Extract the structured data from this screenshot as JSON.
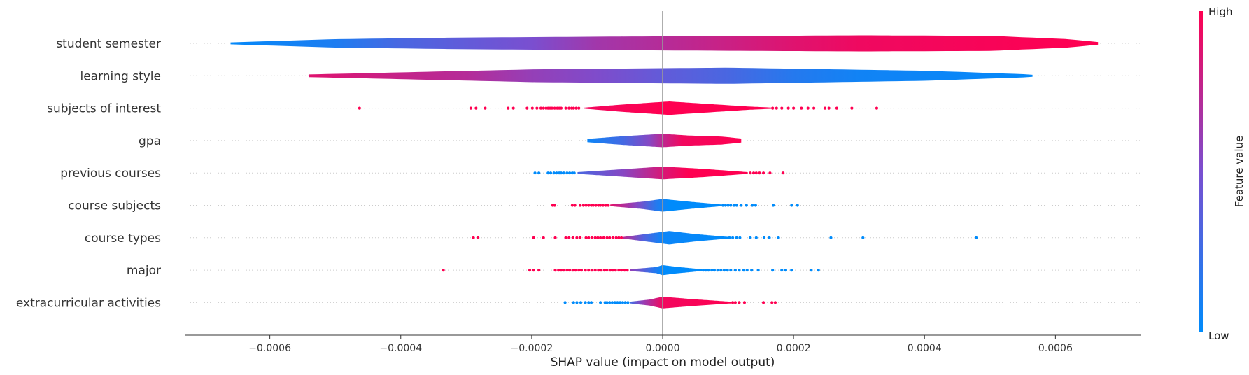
{
  "chart_data": {
    "type": "violin",
    "title": "",
    "xlabel": "SHAP value (impact on model output)",
    "xlim": [
      -0.00073,
      0.00073
    ],
    "xticks": [
      -0.0006,
      -0.0004,
      -0.0002,
      0.0,
      0.0002,
      0.0004,
      0.0006
    ],
    "xtick_labels": [
      "−0.0006",
      "−0.0004",
      "−0.0002",
      "0.0000",
      "0.0002",
      "0.0004",
      "0.0006"
    ],
    "grid": false,
    "colorbar": {
      "label": "Feature value",
      "high_label": "High",
      "low_label": "Low",
      "low_color": "#008bfb",
      "high_color": "#ff0051"
    },
    "features": [
      {
        "name": "student semester",
        "min": -0.00066,
        "max": 0.000665,
        "width_profile": [
          [
            -0.00066,
            0.06
          ],
          [
            -0.0005,
            0.25
          ],
          [
            -0.0003,
            0.35
          ],
          [
            -0.0001,
            0.4
          ],
          [
            0.0001,
            0.44
          ],
          [
            0.0003,
            0.48
          ],
          [
            0.0005,
            0.45
          ],
          [
            0.00062,
            0.25
          ],
          [
            0.000665,
            0.08
          ]
        ],
        "color_profile": [
          [
            -0.00066,
            0.02
          ],
          [
            -0.0005,
            0.12
          ],
          [
            -0.0004,
            0.3
          ],
          [
            -0.0003,
            0.4
          ],
          [
            -0.0002,
            0.5
          ],
          [
            -0.0001,
            0.65
          ],
          [
            0.0,
            0.72
          ],
          [
            0.0001,
            0.8
          ],
          [
            0.0002,
            0.88
          ],
          [
            0.0003,
            0.94
          ],
          [
            0.000665,
            1.0
          ]
        ],
        "outliers": []
      },
      {
        "name": "learning style",
        "min": -0.00054,
        "max": 0.000565,
        "width_profile": [
          [
            -0.00054,
            0.08
          ],
          [
            -0.0004,
            0.2
          ],
          [
            -0.0002,
            0.38
          ],
          [
            0.0,
            0.45
          ],
          [
            0.0001,
            0.48
          ],
          [
            0.0002,
            0.42
          ],
          [
            0.0004,
            0.3
          ],
          [
            0.00055,
            0.1
          ],
          [
            0.000565,
            0.06
          ]
        ],
        "color_profile": [
          [
            -0.00054,
            0.88
          ],
          [
            -0.0004,
            0.78
          ],
          [
            -0.0003,
            0.72
          ],
          [
            -0.0002,
            0.6
          ],
          [
            -0.0001,
            0.52
          ],
          [
            0.0,
            0.4
          ],
          [
            0.0001,
            0.3
          ],
          [
            0.0002,
            0.15
          ],
          [
            0.0003,
            0.07
          ],
          [
            0.000565,
            0.02
          ]
        ],
        "outliers": []
      },
      {
        "name": "subjects of interest",
        "min": -0.00012,
        "max": 0.00017,
        "width_profile": [
          [
            -0.00012,
            0.03
          ],
          [
            -6e-05,
            0.22
          ],
          [
            1e-05,
            0.4
          ],
          [
            7e-05,
            0.25
          ],
          [
            0.00013,
            0.1
          ],
          [
            0.00017,
            0.03
          ]
        ],
        "color_profile": [
          [
            -0.00012,
            0.95
          ],
          [
            0.0,
            1.0
          ],
          [
            0.00017,
            1.0
          ]
        ],
        "outliers_low": [
          -0.000463,
          -0.000293,
          -0.000285,
          -0.000271,
          -0.000236,
          -0.000228,
          -0.000207,
          -0.000199,
          -0.000192,
          -0.000186,
          -0.000182,
          -0.000178,
          -0.000175,
          -0.000172,
          -0.000169,
          -0.000165,
          -0.000161,
          -0.000158,
          -0.000155,
          -0.000148,
          -0.000143,
          -0.000139,
          -0.000136,
          -0.000132,
          -0.000128
        ],
        "outliers_high": [
          0.000168,
          0.000174,
          0.000182,
          0.000192,
          0.0002,
          0.000212,
          0.000222,
          0.000231,
          0.000248,
          0.000254,
          0.000266,
          0.000289,
          0.000327
        ]
      },
      {
        "name": "gpa",
        "min": -0.000115,
        "max": 0.00012,
        "width_profile": [
          [
            -0.000115,
            0.1
          ],
          [
            -6e-05,
            0.26
          ],
          [
            0.0,
            0.4
          ],
          [
            4e-05,
            0.3
          ],
          [
            9e-05,
            0.24
          ],
          [
            0.00012,
            0.12
          ]
        ],
        "color_profile": [
          [
            -0.000115,
            0.05
          ],
          [
            -6e-05,
            0.28
          ],
          [
            -2e-05,
            0.55
          ],
          [
            0.0,
            0.75
          ],
          [
            3e-05,
            0.95
          ],
          [
            0.00012,
            1.0
          ]
        ],
        "outliers": []
      },
      {
        "name": "previous courses",
        "min": -0.00013,
        "max": 0.00013,
        "width_profile": [
          [
            -0.00013,
            0.05
          ],
          [
            -7e-05,
            0.2
          ],
          [
            0.0,
            0.38
          ],
          [
            6e-05,
            0.25
          ],
          [
            0.00013,
            0.05
          ]
        ],
        "color_profile": [
          [
            -0.00013,
            0.3
          ],
          [
            -6e-05,
            0.55
          ],
          [
            0.0,
            0.85
          ],
          [
            4e-05,
            1.0
          ],
          [
            0.00013,
            1.0
          ]
        ],
        "outliers_low": [
          -0.000195,
          -0.000189,
          -0.000175,
          -0.000171,
          -0.000166,
          -0.000162,
          -0.000158,
          -0.000155,
          -0.000151,
          -0.000146,
          -0.000142,
          -0.000138,
          -0.000135
        ],
        "outliers_high": [
          0.000134,
          0.000139,
          0.000143,
          0.000148,
          0.000154,
          0.000164,
          0.000184
        ]
      },
      {
        "name": "course subjects",
        "min": -8e-05,
        "max": 9e-05,
        "width_profile": [
          [
            -8e-05,
            0.05
          ],
          [
            -3e-05,
            0.22
          ],
          [
            0.0,
            0.38
          ],
          [
            4e-05,
            0.22
          ],
          [
            9e-05,
            0.05
          ]
        ],
        "color_profile": [
          [
            -8e-05,
            0.9
          ],
          [
            -4e-05,
            0.55
          ],
          [
            -1e-05,
            0.15
          ],
          [
            1e-05,
            0.0
          ],
          [
            9e-05,
            0.0
          ]
        ],
        "outliers_low": [
          -0.000168,
          -0.000165,
          -0.000138,
          -0.000134,
          -0.000126,
          -0.000121,
          -0.000117,
          -0.000113,
          -0.000109,
          -0.000106,
          -0.000102,
          -9.8e-05,
          -9.5e-05,
          -9.1e-05,
          -8.7e-05,
          -8.3e-05
        ],
        "outliers_high": [
          9.2e-05,
          9.6e-05,
          0.0001,
          0.000104,
          0.000109,
          0.000113,
          0.00012,
          0.000128,
          0.000137,
          0.000142,
          0.000169,
          0.000197,
          0.000206
        ]
      },
      {
        "name": "course types",
        "min": -6e-05,
        "max": 0.0001,
        "width_profile": [
          [
            -6e-05,
            0.05
          ],
          [
            -2e-05,
            0.25
          ],
          [
            1e-05,
            0.4
          ],
          [
            5e-05,
            0.22
          ],
          [
            0.0001,
            0.05
          ]
        ],
        "color_profile": [
          [
            -6e-05,
            0.75
          ],
          [
            -3e-05,
            0.35
          ],
          [
            0.0,
            0.05
          ],
          [
            0.0001,
            0.0
          ]
        ],
        "outliers_low": [
          -0.000289,
          -0.000282,
          -0.000197,
          -0.000182,
          -0.000164,
          -0.000148,
          -0.000143,
          -0.000137,
          -0.000131,
          -0.000126,
          -0.000117,
          -0.000113,
          -0.000108,
          -0.000103,
          -9.9e-05,
          -9.5e-05,
          -9e-05,
          -8.5e-05,
          -8.1e-05,
          -7.6e-05,
          -7.1e-05,
          -6.7e-05,
          -6.3e-05
        ],
        "outliers_high": [
          0.000102,
          0.000107,
          0.000113,
          0.000118,
          0.000134,
          0.000143,
          0.000155,
          0.000163,
          0.000177,
          0.000257,
          0.000306,
          0.000479
        ]
      },
      {
        "name": "major",
        "min": -5e-05,
        "max": 6e-05,
        "width_profile": [
          [
            -5e-05,
            0.05
          ],
          [
            -1e-05,
            0.18
          ],
          [
            0.0,
            0.3
          ],
          [
            2e-05,
            0.2
          ],
          [
            6e-05,
            0.05
          ]
        ],
        "color_profile": [
          [
            -5e-05,
            0.6
          ],
          [
            -2e-05,
            0.25
          ],
          [
            0.0,
            0.0
          ],
          [
            6e-05,
            0.0
          ]
        ],
        "outliers_low": [
          -0.000335,
          -0.000203,
          -0.000197,
          -0.000189,
          -0.000164,
          -0.000159,
          -0.000155,
          -0.000151,
          -0.000146,
          -0.000142,
          -0.000137,
          -0.000133,
          -0.000128,
          -0.000124,
          -0.000118,
          -0.000113,
          -0.000108,
          -0.000103,
          -9.8e-05,
          -9.4e-05,
          -8.9e-05,
          -8.5e-05,
          -8e-05,
          -7.6e-05,
          -7.2e-05,
          -6.7e-05,
          -6.3e-05,
          -5.8e-05,
          -5.4e-05
        ],
        "outliers_high": [
          6.2e-05,
          6.6e-05,
          7e-05,
          7.5e-05,
          7.9e-05,
          8.4e-05,
          8.9e-05,
          9.4e-05,
          9.9e-05,
          0.000104,
          0.000111,
          0.000117,
          0.000124,
          0.000129,
          0.000136,
          0.000146,
          0.000168,
          0.000182,
          0.000188,
          0.000197,
          0.000227,
          0.000238
        ]
      },
      {
        "name": "extracurricular activities",
        "min": -5e-05,
        "max": 0.000105,
        "width_profile": [
          [
            -5e-05,
            0.05
          ],
          [
            -2e-05,
            0.18
          ],
          [
            0.0,
            0.35
          ],
          [
            4e-05,
            0.22
          ],
          [
            0.0001,
            0.06
          ]
        ],
        "color_profile": [
          [
            -5e-05,
            0.25
          ],
          [
            -3e-05,
            0.6
          ],
          [
            0.0,
            0.95
          ],
          [
            0.000105,
            1.0
          ]
        ],
        "outliers_low": [
          -0.000149,
          -0.000136,
          -0.000131,
          -0.000125,
          -0.000118,
          -0.000113,
          -0.000109,
          -9.5e-05,
          -8.8e-05,
          -8.5e-05,
          -8.1e-05,
          -7.7e-05,
          -7.3e-05,
          -6.9e-05,
          -6.5e-05,
          -6.1e-05,
          -5.7e-05,
          -5.3e-05
        ],
        "outliers_high": [
          0.000107,
          0.000111,
          0.000117,
          0.000125,
          0.000154,
          0.000167,
          0.000172
        ]
      }
    ]
  }
}
